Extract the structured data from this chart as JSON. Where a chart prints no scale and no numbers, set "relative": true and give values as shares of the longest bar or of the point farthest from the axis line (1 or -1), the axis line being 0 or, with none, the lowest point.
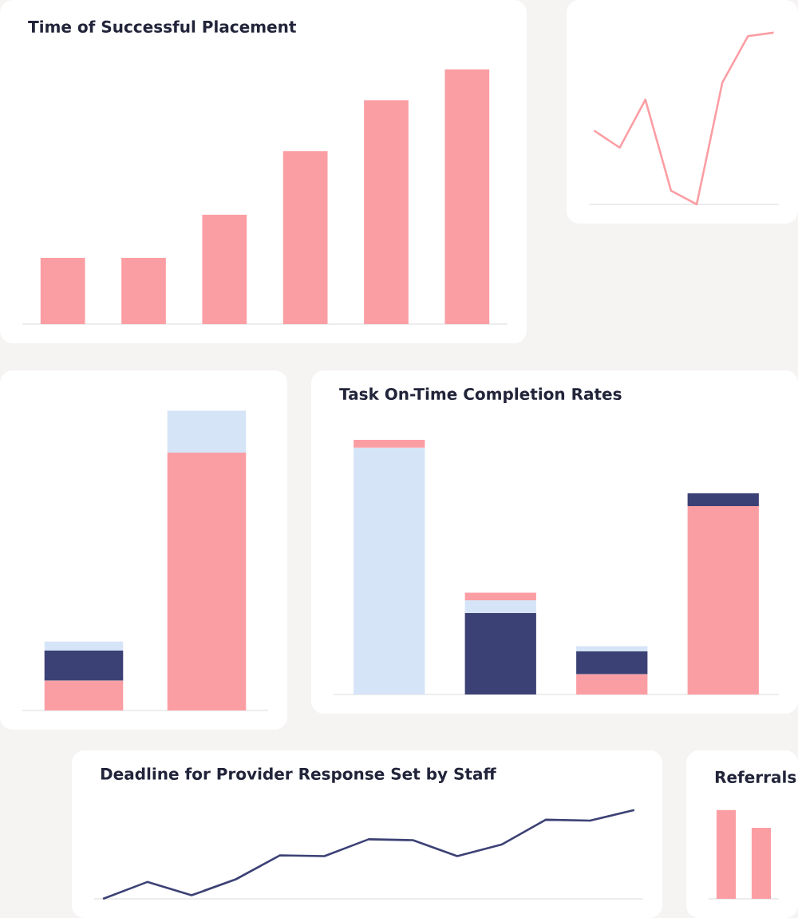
{
  "chart_data": [
    {
      "type": "bar",
      "title": "Time of Successful Placement",
      "relative": true,
      "categories": [
        null,
        null,
        null,
        null,
        null,
        null
      ],
      "color": "#fb9ea4",
      "values": [
        0.26,
        0.26,
        0.43,
        0.68,
        0.88,
        1
      ]
    },
    {
      "type": "line",
      "relative": true,
      "categories": [
        null,
        null,
        null,
        null,
        null,
        null,
        null,
        null
      ],
      "color": "#fb9ea4",
      "values": [
        0.43,
        0.33,
        0.61,
        0.08,
        0,
        0.71,
        0.98,
        1
      ]
    },
    {
      "type": "bar",
      "relative": true,
      "stacked": true,
      "categories": [
        null,
        null
      ],
      "series": [
        {
          "color": "#fb9ea4",
          "values": [
            0.1,
            0.86
          ]
        },
        {
          "color": "#3c4175",
          "values": [
            0.1,
            null
          ]
        },
        {
          "color": "#d6e4f7",
          "values": [
            0.03,
            0.14
          ]
        }
      ]
    },
    {
      "type": "bar",
      "title": "Task On-Time Completion Rates",
      "relative": true,
      "stacked": true,
      "categories": [
        null,
        null,
        null,
        null
      ],
      "series": [
        {
          "color": "#d6e4f7",
          "values": [
            0.97,
            null,
            null,
            null
          ]
        },
        {
          "color": "#3c4175",
          "values": [
            null,
            0.32,
            null,
            null
          ]
        },
        {
          "color": "#fb9ea4",
          "values": [
            null,
            null,
            0.08,
            0.74
          ]
        },
        {
          "color": "#3c4175",
          "values": [
            null,
            null,
            0.09,
            0.05
          ]
        },
        {
          "color": "#d6e4f7",
          "values": [
            null,
            0.05,
            0.02,
            null
          ]
        },
        {
          "color": "#fb9ea4",
          "values": [
            0.03,
            0.03,
            null,
            null
          ]
        }
      ]
    },
    {
      "type": "line",
      "title": "Deadline for Provider Response Set by Staff",
      "relative": true,
      "categories": [
        null,
        null,
        null,
        null,
        null,
        null,
        null,
        null,
        null,
        null,
        null,
        null,
        null
      ],
      "color": "#3c4175",
      "values": [
        0,
        0.19,
        0.04,
        0.22,
        0.49,
        0.48,
        0.67,
        0.66,
        0.48,
        0.61,
        0.89,
        0.88,
        1
      ]
    },
    {
      "type": "bar",
      "title": "Referrals",
      "relative": true,
      "categories": [
        null,
        null
      ],
      "color": "#fb9ea4",
      "values": [
        1,
        0.8
      ]
    }
  ]
}
